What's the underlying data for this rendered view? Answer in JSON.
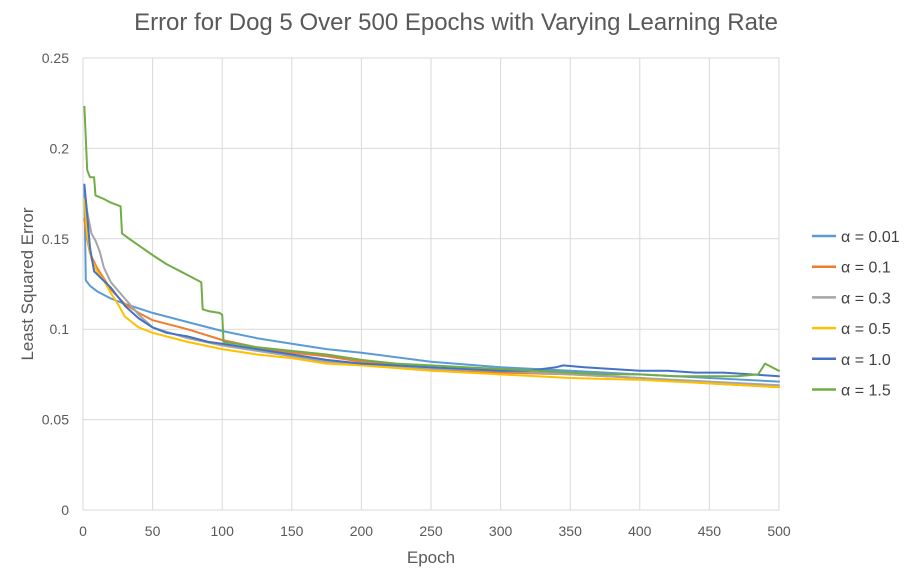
{
  "chart_data": {
    "type": "line",
    "title": "Error for Dog 5 Over 500 Epochs with Varying Learning Rate",
    "xlabel": "Epoch",
    "ylabel": "Least Squared Error",
    "xlim": [
      0,
      500
    ],
    "ylim": [
      0,
      0.25
    ],
    "xticks": [
      "0",
      "50",
      "100",
      "150",
      "200",
      "250",
      "300",
      "350",
      "400",
      "450",
      "500"
    ],
    "yticks": [
      "0",
      "0.05",
      "0.1",
      "0.15",
      "0.2",
      "0.25"
    ],
    "grid": true,
    "legend_position": "right",
    "series": [
      {
        "name": "α = 0.01",
        "color": "#5b9bd5",
        "points": [
          [
            1,
            0.178
          ],
          [
            2,
            0.127
          ],
          [
            5,
            0.124
          ],
          [
            10,
            0.121
          ],
          [
            20,
            0.117
          ],
          [
            30,
            0.114
          ],
          [
            50,
            0.109
          ],
          [
            75,
            0.104
          ],
          [
            100,
            0.099
          ],
          [
            125,
            0.095
          ],
          [
            150,
            0.092
          ],
          [
            175,
            0.089
          ],
          [
            200,
            0.087
          ],
          [
            250,
            0.082
          ],
          [
            300,
            0.079
          ],
          [
            350,
            0.077
          ],
          [
            400,
            0.075
          ],
          [
            450,
            0.073
          ],
          [
            500,
            0.071
          ]
        ]
      },
      {
        "name": "α = 0.1",
        "color": "#ed7d31",
        "points": [
          [
            1,
            0.161
          ],
          [
            3,
            0.15
          ],
          [
            5,
            0.142
          ],
          [
            10,
            0.134
          ],
          [
            20,
            0.122
          ],
          [
            30,
            0.114
          ],
          [
            40,
            0.109
          ],
          [
            50,
            0.105
          ],
          [
            75,
            0.1
          ],
          [
            100,
            0.094
          ],
          [
            125,
            0.09
          ],
          [
            150,
            0.087
          ],
          [
            175,
            0.085
          ],
          [
            200,
            0.082
          ],
          [
            250,
            0.078
          ],
          [
            300,
            0.076
          ],
          [
            350,
            0.075
          ],
          [
            400,
            0.073
          ],
          [
            450,
            0.07
          ],
          [
            500,
            0.068
          ]
        ]
      },
      {
        "name": "α = 0.3",
        "color": "#a5a5a5",
        "points": [
          [
            1,
            0.178
          ],
          [
            3,
            0.165
          ],
          [
            6,
            0.153
          ],
          [
            9,
            0.149
          ],
          [
            12,
            0.143
          ],
          [
            15,
            0.134
          ],
          [
            20,
            0.126
          ],
          [
            30,
            0.117
          ],
          [
            40,
            0.108
          ],
          [
            50,
            0.101
          ],
          [
            75,
            0.095
          ],
          [
            100,
            0.091
          ],
          [
            125,
            0.088
          ],
          [
            150,
            0.085
          ],
          [
            175,
            0.082
          ],
          [
            200,
            0.081
          ],
          [
            250,
            0.078
          ],
          [
            300,
            0.077
          ],
          [
            350,
            0.075
          ],
          [
            400,
            0.073
          ],
          [
            450,
            0.071
          ],
          [
            500,
            0.069
          ]
        ]
      },
      {
        "name": "α = 0.5",
        "color": "#ffc000",
        "points": [
          [
            1,
            0.172
          ],
          [
            3,
            0.152
          ],
          [
            6,
            0.139
          ],
          [
            10,
            0.132
          ],
          [
            15,
            0.127
          ],
          [
            20,
            0.12
          ],
          [
            25,
            0.114
          ],
          [
            30,
            0.107
          ],
          [
            35,
            0.104
          ],
          [
            40,
            0.101
          ],
          [
            50,
            0.098
          ],
          [
            75,
            0.093
          ],
          [
            100,
            0.089
          ],
          [
            125,
            0.086
          ],
          [
            150,
            0.084
          ],
          [
            175,
            0.081
          ],
          [
            200,
            0.08
          ],
          [
            250,
            0.077
          ],
          [
            300,
            0.075
          ],
          [
            350,
            0.073
          ],
          [
            400,
            0.072
          ],
          [
            450,
            0.07
          ],
          [
            500,
            0.068
          ]
        ]
      },
      {
        "name": "α = 1.0",
        "color": "#4472c4",
        "points": [
          [
            1,
            0.18
          ],
          [
            3,
            0.163
          ],
          [
            5,
            0.145
          ],
          [
            8,
            0.132
          ],
          [
            12,
            0.129
          ],
          [
            20,
            0.123
          ],
          [
            30,
            0.113
          ],
          [
            40,
            0.106
          ],
          [
            50,
            0.101
          ],
          [
            60,
            0.098
          ],
          [
            75,
            0.096
          ],
          [
            90,
            0.093
          ],
          [
            100,
            0.092
          ],
          [
            125,
            0.089
          ],
          [
            150,
            0.086
          ],
          [
            175,
            0.083
          ],
          [
            200,
            0.081
          ],
          [
            225,
            0.08
          ],
          [
            250,
            0.079
          ],
          [
            275,
            0.078
          ],
          [
            300,
            0.077
          ],
          [
            320,
            0.077
          ],
          [
            340,
            0.079
          ],
          [
            345,
            0.08
          ],
          [
            360,
            0.079
          ],
          [
            380,
            0.078
          ],
          [
            400,
            0.077
          ],
          [
            420,
            0.077
          ],
          [
            440,
            0.076
          ],
          [
            460,
            0.076
          ],
          [
            480,
            0.075
          ],
          [
            500,
            0.074
          ]
        ]
      },
      {
        "name": "α = 1.5",
        "color": "#70ad47",
        "points": [
          [
            1,
            0.223
          ],
          [
            3,
            0.188
          ],
          [
            5,
            0.184
          ],
          [
            8,
            0.184
          ],
          [
            9,
            0.174
          ],
          [
            15,
            0.172
          ],
          [
            20,
            0.17
          ],
          [
            27,
            0.168
          ],
          [
            28,
            0.153
          ],
          [
            35,
            0.149
          ],
          [
            50,
            0.141
          ],
          [
            60,
            0.136
          ],
          [
            70,
            0.132
          ],
          [
            80,
            0.128
          ],
          [
            85,
            0.126
          ],
          [
            86,
            0.111
          ],
          [
            90,
            0.11
          ],
          [
            98,
            0.109
          ],
          [
            100,
            0.108
          ],
          [
            101,
            0.093
          ],
          [
            110,
            0.092
          ],
          [
            125,
            0.09
          ],
          [
            150,
            0.088
          ],
          [
            175,
            0.086
          ],
          [
            200,
            0.083
          ],
          [
            225,
            0.081
          ],
          [
            250,
            0.08
          ],
          [
            275,
            0.079
          ],
          [
            300,
            0.078
          ],
          [
            325,
            0.077
          ],
          [
            350,
            0.076
          ],
          [
            375,
            0.075
          ],
          [
            400,
            0.075
          ],
          [
            425,
            0.074
          ],
          [
            450,
            0.074
          ],
          [
            470,
            0.074
          ],
          [
            485,
            0.075
          ],
          [
            490,
            0.081
          ],
          [
            495,
            0.079
          ],
          [
            500,
            0.077
          ]
        ]
      }
    ]
  }
}
